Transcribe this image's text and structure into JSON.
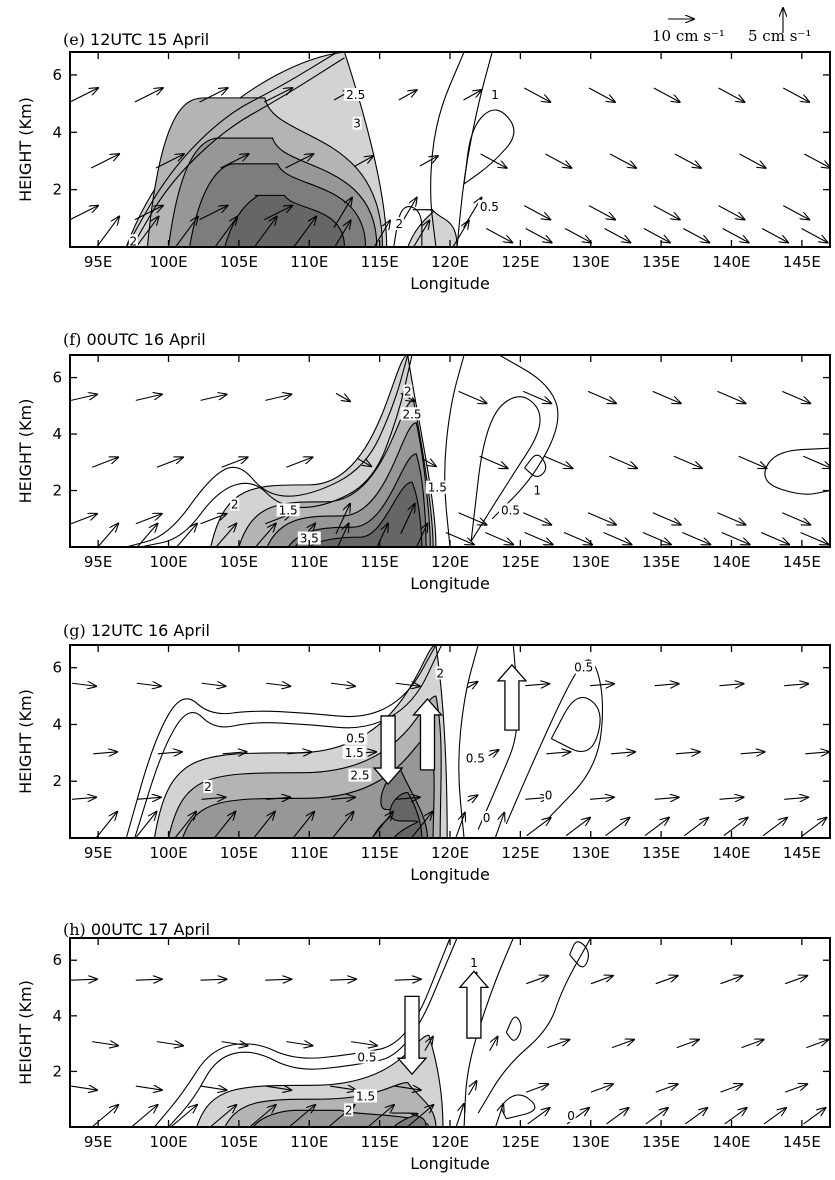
{
  "reference_vectors": {
    "horizontal_label": "10 cm s⁻¹",
    "vertical_label": "5 cm s⁻¹"
  },
  "shading_levels": [
    {
      "min": 1.5,
      "color": "#d3d3d3"
    },
    {
      "min": 2.0,
      "color": "#b4b4b4"
    },
    {
      "min": 2.5,
      "color": "#979797"
    },
    {
      "min": 3.0,
      "color": "#7d7d7d"
    },
    {
      "min": 3.5,
      "color": "#666666"
    }
  ],
  "chart_data": [
    {
      "type": "vector-contour cross section",
      "panel": "(e)",
      "title": "12UTC   15 April",
      "xlabel": "Longitude",
      "ylabel": "HEIGHT (Km)",
      "xlim": [
        93,
        147
      ],
      "ylim": [
        0,
        6.8
      ],
      "xticks": [
        "95E",
        "100E",
        "105E",
        "110E",
        "115E",
        "120E",
        "125E",
        "130E",
        "135E",
        "140E",
        "145E"
      ],
      "yticks": [
        "2",
        "4",
        "6"
      ],
      "contour_labels": [
        {
          "text": "2.5",
          "lon": 113.3,
          "h": 5.3
        },
        {
          "text": "3",
          "lon": 113.4,
          "h": 4.3
        },
        {
          "text": "1",
          "lon": 123.2,
          "h": 5.3
        },
        {
          "text": "2",
          "lon": 116.4,
          "h": 0.8
        },
        {
          "text": "0.5",
          "lon": 122.8,
          "h": 1.4
        },
        {
          "text": "2",
          "lon": 97.5,
          "h": 0.2
        }
      ],
      "big_arrows": []
    },
    {
      "type": "vector-contour cross section",
      "panel": "(f)",
      "title": "00UTC    16 April",
      "xlabel": "Longitude",
      "ylabel": "HEIGHT (Km)",
      "xlim": [
        93,
        147
      ],
      "ylim": [
        0,
        6.8
      ],
      "xticks": [
        "95E",
        "100E",
        "105E",
        "110E",
        "115E",
        "120E",
        "125E",
        "130E",
        "135E",
        "140E",
        "145E"
      ],
      "yticks": [
        "2",
        "4",
        "6"
      ],
      "contour_labels": [
        {
          "text": "2",
          "lon": 117.0,
          "h": 5.5
        },
        {
          "text": "2.5",
          "lon": 117.3,
          "h": 4.7
        },
        {
          "text": "1.5",
          "lon": 119.1,
          "h": 2.1
        },
        {
          "text": "1",
          "lon": 126.2,
          "h": 2.0
        },
        {
          "text": "0.5",
          "lon": 124.3,
          "h": 1.3
        },
        {
          "text": "2",
          "lon": 104.7,
          "h": 1.5
        },
        {
          "text": "1.5",
          "lon": 108.5,
          "h": 1.3
        },
        {
          "text": "3.5",
          "lon": 110.0,
          "h": 0.3
        }
      ],
      "big_arrows": []
    },
    {
      "type": "vector-contour cross section",
      "panel": "(g)",
      "title": "12UTC    16 April",
      "xlabel": "Longitude",
      "ylabel": "HEIGHT (Km)",
      "xlim": [
        93,
        147
      ],
      "ylim": [
        0,
        6.8
      ],
      "xticks": [
        "95E",
        "100E",
        "105E",
        "110E",
        "115E",
        "120E",
        "125E",
        "130E",
        "135E",
        "140E",
        "145E"
      ],
      "yticks": [
        "2",
        "4",
        "6"
      ],
      "contour_labels": [
        {
          "text": "0.5",
          "lon": 129.5,
          "h": 6.0
        },
        {
          "text": "2",
          "lon": 119.3,
          "h": 5.8
        },
        {
          "text": "0.5",
          "lon": 113.3,
          "h": 3.5
        },
        {
          "text": "1.5",
          "lon": 113.2,
          "h": 3.0
        },
        {
          "text": "2.5",
          "lon": 113.6,
          "h": 2.2
        },
        {
          "text": "2",
          "lon": 102.8,
          "h": 1.8
        },
        {
          "text": "0.5",
          "lon": 121.8,
          "h": 2.8
        },
        {
          "text": "0",
          "lon": 127.0,
          "h": 1.5
        },
        {
          "text": "0",
          "lon": 122.6,
          "h": 0.7
        }
      ],
      "big_arrows": [
        {
          "dir": "down",
          "lon": 115.6,
          "h_top": 4.3,
          "h_bot": 1.9
        },
        {
          "dir": "up",
          "lon": 118.4,
          "h_top": 4.9,
          "h_bot": 2.4
        },
        {
          "dir": "up",
          "lon": 124.4,
          "h_top": 6.1,
          "h_bot": 3.8
        }
      ]
    },
    {
      "type": "vector-contour cross section",
      "panel": "(h)",
      "title": "00UTC    17 April",
      "xlabel": "Longitude",
      "ylabel": "HEIGHT (Km)",
      "xlim": [
        93,
        147
      ],
      "ylim": [
        0,
        6.8
      ],
      "xticks": [
        "95E",
        "100E",
        "105E",
        "110E",
        "115E",
        "120E",
        "125E",
        "130E",
        "135E",
        "140E",
        "145E"
      ],
      "yticks": [
        "2",
        "4",
        "6"
      ],
      "contour_labels": [
        {
          "text": "1",
          "lon": 121.7,
          "h": 5.9
        },
        {
          "text": "0.5",
          "lon": 114.1,
          "h": 2.5
        },
        {
          "text": "1.5",
          "lon": 114.0,
          "h": 1.1
        },
        {
          "text": "2",
          "lon": 112.8,
          "h": 0.6
        },
        {
          "text": "0",
          "lon": 128.6,
          "h": 0.4
        }
      ],
      "big_arrows": [
        {
          "dir": "down",
          "lon": 117.3,
          "h_top": 4.7,
          "h_bot": 1.9
        },
        {
          "dir": "up",
          "lon": 121.7,
          "h_top": 5.6,
          "h_bot": 3.2
        }
      ]
    }
  ]
}
